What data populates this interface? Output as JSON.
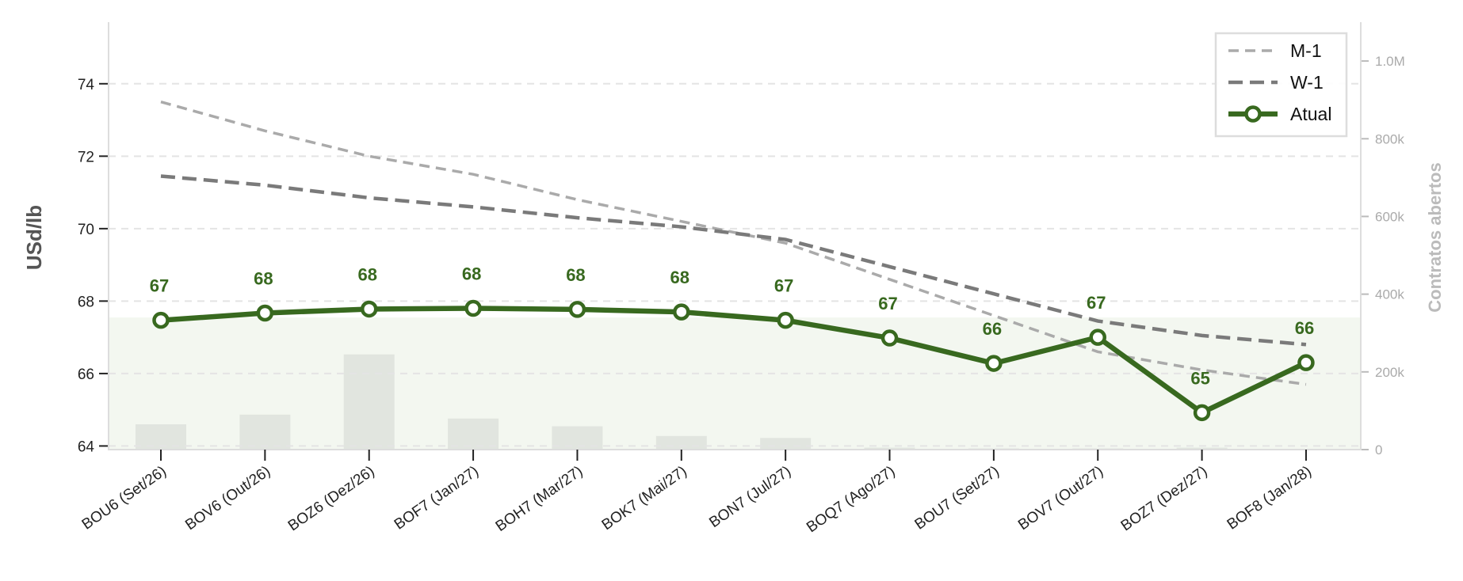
{
  "chart_data": {
    "type": "line",
    "categories": [
      "BOU6 (Set/26)",
      "BOV6 (Out/26)",
      "BOZ6 (Dez/26)",
      "BOF7 (Jan/27)",
      "BOH7 (Mar/27)",
      "BOK7 (Mai/27)",
      "BON7 (Jul/27)",
      "BOQ7 (Ago/27)",
      "BOU7 (Set/27)",
      "BOV7 (Out/27)",
      "BOZ7 (Dez/27)",
      "BOF8 (Jan/28)"
    ],
    "ylabel": "USd/lb",
    "y2label": "Contratos abertos",
    "ylim": [
      63.9,
      75.7
    ],
    "y2lim": [
      0,
      1100000
    ],
    "yticks": [
      "64",
      "66",
      "68",
      "70",
      "72",
      "74"
    ],
    "y2ticks": [
      "0",
      "200k",
      "400k",
      "600k",
      "800k",
      "1.0M"
    ],
    "grid": "horizontal dashed",
    "legend_position": "top-right",
    "series": [
      {
        "name": "M-1",
        "style": "dashed",
        "color": "#aaaaaa",
        "values": [
          73.5,
          72.7,
          72.0,
          71.5,
          70.8,
          70.2,
          69.6,
          68.6,
          67.6,
          66.6,
          66.1,
          65.7
        ]
      },
      {
        "name": "W-1",
        "style": "dashed",
        "color": "#7a7a7a",
        "values": [
          71.45,
          71.2,
          70.85,
          70.6,
          70.3,
          70.05,
          69.7,
          68.95,
          68.2,
          67.45,
          67.05,
          66.8
        ]
      },
      {
        "name": "Atual",
        "style": "solid-markers",
        "color": "#38691f",
        "values": [
          67.47,
          67.67,
          67.78,
          67.8,
          67.77,
          67.7,
          67.47,
          66.98,
          66.28,
          67.0,
          64.92,
          66.3
        ]
      }
    ],
    "data_labels": [
      "67",
      "68",
      "68",
      "68",
      "68",
      "68",
      "67",
      "67",
      "66",
      "67",
      "65",
      "66"
    ],
    "open_interest": [
      65000,
      90000,
      245000,
      80000,
      60000,
      35000,
      30000,
      5000,
      3000,
      3000,
      5000,
      2000
    ],
    "open_interest_area": 340000,
    "colors": {
      "bar": "#e1e5df",
      "area": "#f3f7f0",
      "accent": "#38691f"
    }
  }
}
